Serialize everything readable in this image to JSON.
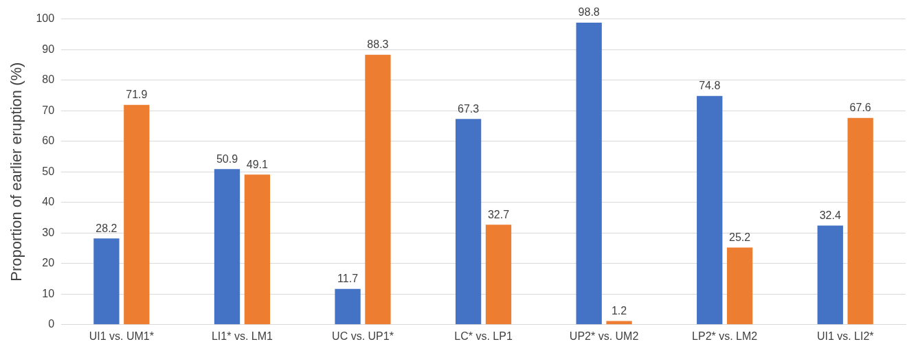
{
  "chart_data": {
    "type": "bar",
    "ylabel": "Proportion of earlier eruption (%)",
    "categories": [
      "UI1 vs. UM1*",
      "LI1* vs. LM1",
      "UC vs. UP1*",
      "LC* vs. LP1",
      "UP2* vs. UM2",
      "LP2* vs. LM2",
      "UI1 vs. LI2*"
    ],
    "series": [
      {
        "color": "#4472c4",
        "values": [
          28.2,
          50.9,
          11.7,
          67.3,
          98.8,
          74.8,
          32.4
        ]
      },
      {
        "color": "#ed7d31",
        "values": [
          71.9,
          49.1,
          88.3,
          32.7,
          1.2,
          25.2,
          67.6
        ]
      }
    ],
    "ylim": [
      0,
      100
    ],
    "yticks": [
      0,
      10,
      20,
      30,
      40,
      50,
      60,
      70,
      80,
      90,
      100
    ],
    "grid": "y",
    "legend": false,
    "data_labels": true
  }
}
